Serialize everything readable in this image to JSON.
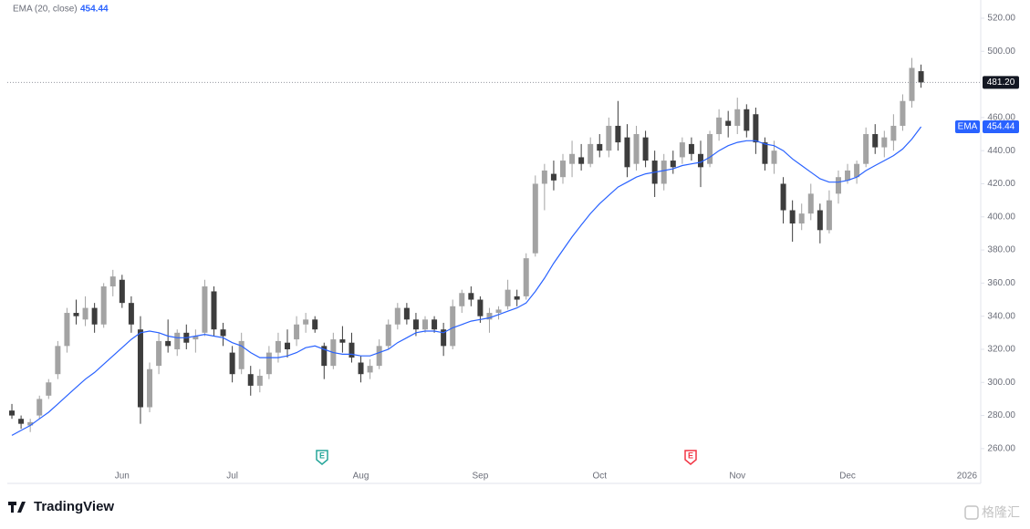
{
  "chart_data": {
    "type": "candlestick",
    "indicator_name": "EMA (20, close)",
    "categories": [
      null,
      null,
      null,
      null,
      null,
      null,
      null,
      null,
      null,
      null,
      null,
      null,
      "Jun",
      null,
      null,
      null,
      null,
      null,
      null,
      null,
      null,
      null,
      null,
      null,
      "Jul",
      null,
      null,
      null,
      null,
      null,
      null,
      null,
      null,
      null,
      null,
      null,
      null,
      null,
      "Aug",
      null,
      null,
      null,
      null,
      null,
      null,
      null,
      null,
      null,
      null,
      null,
      null,
      "Sep",
      null,
      null,
      null,
      null,
      null,
      null,
      null,
      null,
      null,
      null,
      null,
      null,
      "Oct",
      null,
      null,
      null,
      null,
      null,
      null,
      null,
      null,
      null,
      null,
      null,
      null,
      null,
      null,
      "Nov",
      null,
      null,
      null,
      null,
      null,
      null,
      null,
      null,
      null,
      null,
      null,
      "Dec",
      null,
      null,
      null,
      null,
      null,
      null,
      null,
      null,
      null,
      null,
      null,
      null,
      "2026",
      null
    ],
    "open": [
      283,
      278,
      274,
      280,
      292,
      305,
      322,
      342,
      338,
      345,
      335,
      358,
      362,
      348,
      332,
      285,
      310,
      325,
      320,
      330,
      326,
      330,
      355,
      332,
      318,
      308,
      305,
      298,
      305,
      318,
      324,
      326,
      335,
      338,
      322,
      310,
      326,
      324,
      312,
      306,
      310,
      322,
      335,
      345,
      338,
      332,
      338,
      332,
      322,
      346,
      354,
      350,
      338,
      342,
      346,
      352,
      352,
      378,
      420,
      426,
      424,
      432,
      436,
      432,
      444,
      440,
      455,
      448,
      432,
      448,
      434,
      420,
      434,
      436,
      444,
      438,
      432,
      450,
      458,
      455,
      465,
      462,
      445,
      432,
      420,
      404,
      396,
      402,
      404,
      392,
      414,
      422,
      424,
      432,
      450,
      442,
      446,
      455,
      470,
      488,
      null,
      null,
      null,
      null,
      null,
      null
    ],
    "high": [
      287,
      280,
      278,
      292,
      302,
      325,
      345,
      350,
      352,
      348,
      360,
      368,
      365,
      352,
      340,
      312,
      330,
      338,
      332,
      335,
      332,
      362,
      358,
      336,
      322,
      330,
      310,
      308,
      322,
      330,
      332,
      340,
      342,
      340,
      324,
      330,
      334,
      330,
      316,
      314,
      326,
      338,
      348,
      348,
      342,
      340,
      340,
      336,
      350,
      356,
      358,
      352,
      345,
      346,
      362,
      356,
      378,
      425,
      432,
      434,
      438,
      446,
      444,
      448,
      450,
      460,
      470,
      456,
      455,
      452,
      440,
      438,
      440,
      448,
      448,
      446,
      452,
      465,
      464,
      472,
      468,
      466,
      448,
      446,
      424,
      410,
      408,
      420,
      408,
      416,
      428,
      432,
      434,
      454,
      456,
      452,
      462,
      474,
      496,
      492,
      null,
      null,
      null,
      null,
      null,
      null
    ],
    "low": [
      278,
      272,
      270,
      278,
      290,
      302,
      318,
      335,
      334,
      330,
      333,
      352,
      345,
      330,
      275,
      282,
      305,
      318,
      316,
      320,
      318,
      328,
      328,
      322,
      300,
      305,
      292,
      294,
      302,
      312,
      315,
      322,
      330,
      330,
      302,
      308,
      318,
      312,
      300,
      302,
      308,
      320,
      332,
      335,
      328,
      330,
      330,
      316,
      320,
      342,
      346,
      336,
      330,
      338,
      344,
      346,
      350,
      376,
      404,
      416,
      420,
      424,
      428,
      430,
      436,
      436,
      440,
      424,
      428,
      430,
      412,
      416,
      426,
      432,
      434,
      418,
      430,
      446,
      448,
      450,
      448,
      438,
      428,
      426,
      396,
      385,
      392,
      398,
      384,
      390,
      408,
      420,
      420,
      430,
      438,
      436,
      440,
      452,
      466,
      478,
      null,
      null,
      null,
      null,
      null,
      null
    ],
    "close": [
      280,
      275,
      276,
      290,
      300,
      322,
      342,
      340,
      345,
      335,
      358,
      364,
      348,
      335,
      285,
      308,
      325,
      322,
      330,
      324,
      328,
      358,
      332,
      328,
      305,
      325,
      298,
      304,
      318,
      325,
      320,
      335,
      338,
      332,
      310,
      326,
      324,
      315,
      305,
      310,
      322,
      335,
      345,
      338,
      332,
      338,
      332,
      322,
      346,
      354,
      350,
      340,
      342,
      344,
      356,
      350,
      375,
      420,
      428,
      422,
      434,
      438,
      432,
      444,
      440,
      455,
      445,
      430,
      450,
      434,
      420,
      434,
      430,
      445,
      438,
      430,
      450,
      460,
      455,
      465,
      452,
      445,
      432,
      440,
      404,
      396,
      402,
      414,
      392,
      410,
      424,
      428,
      432,
      450,
      442,
      448,
      455,
      470,
      490,
      481.2,
      null,
      null,
      null,
      null,
      null,
      null
    ],
    "ema": [
      268,
      271,
      274,
      278,
      282,
      287,
      292,
      297,
      302,
      306,
      311,
      316,
      321,
      326,
      330,
      331,
      330,
      328,
      327,
      327,
      328,
      329,
      328,
      327,
      324,
      322,
      318,
      315,
      315,
      315,
      316,
      318,
      321,
      322,
      320,
      318,
      317,
      317,
      316,
      316,
      318,
      320,
      324,
      327,
      330,
      331,
      331,
      330,
      333,
      335,
      337,
      338,
      339,
      341,
      343,
      345,
      348,
      355,
      363,
      372,
      380,
      388,
      395,
      402,
      408,
      413,
      418,
      421,
      424,
      426,
      427,
      428,
      429,
      431,
      432,
      433,
      436,
      440,
      443,
      445,
      446,
      446,
      444,
      443,
      440,
      435,
      431,
      427,
      423,
      421,
      421,
      422,
      424,
      428,
      431,
      434,
      437,
      441,
      447,
      454.44,
      null,
      null,
      null,
      null,
      null,
      null
    ],
    "up_color": "#a3a3a3",
    "down_color": "#3d3d3d",
    "ema_color": "#2962ff",
    "last_close_label": "481.20",
    "ylim": [
      239,
      531
    ],
    "yticks": [
      {
        "value": 260,
        "label": "260.00"
      },
      {
        "value": 280,
        "label": "280.00"
      },
      {
        "value": 300,
        "label": "300.00"
      },
      {
        "value": 320,
        "label": "320.00"
      },
      {
        "value": 340,
        "label": "340.00"
      },
      {
        "value": 360,
        "label": "360.00"
      },
      {
        "value": 380,
        "label": "380.00"
      },
      {
        "value": 400,
        "label": "400.00"
      },
      {
        "value": 420,
        "label": "420.00"
      },
      {
        "value": 440,
        "label": "440.00"
      },
      {
        "value": 460,
        "label": "460.00"
      },
      {
        "value": 500,
        "label": "500.00"
      },
      {
        "value": 520,
        "label": "520.00"
      }
    ],
    "ema_tag": "EMA",
    "earnings": [
      "E",
      "E"
    ]
  },
  "brand": "TradingView",
  "watermark": "格隆汇"
}
